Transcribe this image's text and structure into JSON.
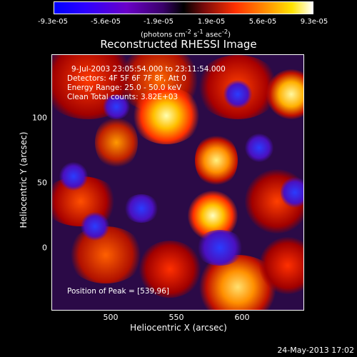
{
  "colorbar": {
    "ticks": [
      "-9.3e-05",
      "-5.6e-05",
      "-1.9e-05",
      "1.9e-05",
      "5.6e-05",
      "9.3e-05"
    ],
    "units_html": "(photons cm<sup>-2</sup> s<sup>-1</sup> asec<sup>-2</sup>)"
  },
  "title": "Reconstructed RHESSI Image",
  "info": {
    "time": "9-Jul-2003 23:05:54.000 to 23:11:54.000",
    "detectors": "Detectors: 4F 5F 6F 7F 8F, Att 0",
    "energy": "Energy Range: 25.0 - 50.0 keV",
    "clean": "Clean    Total counts: 3.82E+03",
    "peak": "Position of Peak = [539,96]"
  },
  "axes": {
    "xlabel": "Heliocentric X (arcsec)",
    "ylabel": "Heliocentric Y (arcsec)",
    "xticks": [
      "500",
      "550",
      "600"
    ],
    "yticks": [
      "100",
      "50",
      "0"
    ]
  },
  "date_stamp": "24-May-2013 17:02"
}
